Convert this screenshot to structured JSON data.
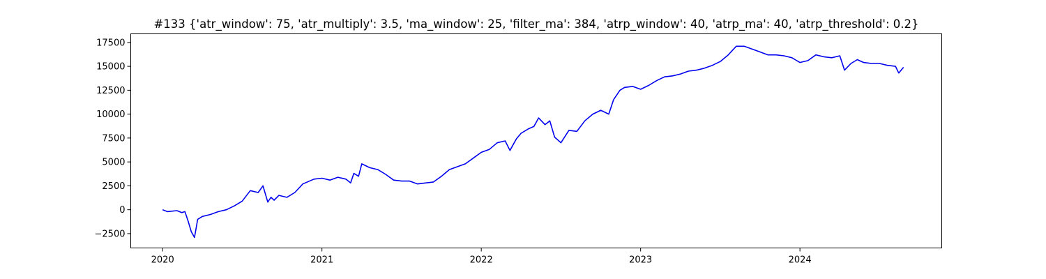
{
  "chart_data": {
    "type": "line",
    "title": "#133 {'atr_window': 75, 'atr_multiply': 3.5, 'ma_window': 25, 'filter_ma': 384, 'atrp_window': 40, 'atrp_ma': 40, 'atrp_threshold': 0.2}",
    "xlabel": "",
    "ylabel": "",
    "grid": false,
    "legend": "none",
    "xlim": [
      2019.8,
      2024.89
    ],
    "ylim": [
      -4000,
      18400
    ],
    "x_ticks": [
      {
        "value": 2020,
        "label": "2020"
      },
      {
        "value": 2021,
        "label": "2021"
      },
      {
        "value": 2022,
        "label": "2022"
      },
      {
        "value": 2023,
        "label": "2023"
      },
      {
        "value": 2024,
        "label": "2024"
      }
    ],
    "y_ticks": [
      {
        "value": -2500,
        "label": "−2500"
      },
      {
        "value": 0,
        "label": "0"
      },
      {
        "value": 2500,
        "label": "2500"
      },
      {
        "value": 5000,
        "label": "5000"
      },
      {
        "value": 7500,
        "label": "7500"
      },
      {
        "value": 10000,
        "label": "10000"
      },
      {
        "value": 12500,
        "label": "12500"
      },
      {
        "value": 15000,
        "label": "15000"
      },
      {
        "value": 17500,
        "label": "17500"
      }
    ],
    "series": [
      {
        "color": "#0000ee",
        "x": [
          2020.0,
          2020.03,
          2020.06,
          2020.09,
          2020.12,
          2020.14,
          2020.16,
          2020.18,
          2020.2,
          2020.22,
          2020.25,
          2020.3,
          2020.35,
          2020.4,
          2020.45,
          2020.5,
          2020.55,
          2020.6,
          2020.63,
          2020.66,
          2020.68,
          2020.7,
          2020.73,
          2020.78,
          2020.83,
          2020.88,
          2020.95,
          2021.0,
          2021.05,
          2021.1,
          2021.15,
          2021.18,
          2021.2,
          2021.23,
          2021.25,
          2021.3,
          2021.35,
          2021.4,
          2021.45,
          2021.5,
          2021.55,
          2021.6,
          2021.65,
          2021.7,
          2021.75,
          2021.8,
          2021.85,
          2021.9,
          2021.95,
          2022.0,
          2022.05,
          2022.1,
          2022.15,
          2022.18,
          2022.22,
          2022.25,
          2022.3,
          2022.33,
          2022.36,
          2022.4,
          2022.43,
          2022.46,
          2022.5,
          2022.55,
          2022.6,
          2022.65,
          2022.7,
          2022.75,
          2022.8,
          2022.83,
          2022.87,
          2022.9,
          2022.95,
          2023.0,
          2023.05,
          2023.1,
          2023.15,
          2023.2,
          2023.25,
          2023.3,
          2023.35,
          2023.4,
          2023.45,
          2023.5,
          2023.55,
          2023.6,
          2023.65,
          2023.7,
          2023.75,
          2023.8,
          2023.85,
          2023.9,
          2023.95,
          2024.0,
          2024.05,
          2024.1,
          2024.15,
          2024.2,
          2024.25,
          2024.28,
          2024.32,
          2024.36,
          2024.4,
          2024.45,
          2024.5,
          2024.55,
          2024.6,
          2024.62,
          2024.65
        ],
        "values": [
          0,
          -200,
          -150,
          -100,
          -300,
          -200,
          -1200,
          -2300,
          -2900,
          -1000,
          -700,
          -500,
          -200,
          0,
          400,
          900,
          2000,
          1800,
          2500,
          800,
          1300,
          1000,
          1500,
          1300,
          1800,
          2700,
          3200,
          3300,
          3100,
          3400,
          3200,
          2800,
          3800,
          3500,
          4800,
          4400,
          4200,
          3700,
          3100,
          3000,
          3000,
          2700,
          2800,
          2900,
          3500,
          4200,
          4500,
          4800,
          5400,
          6000,
          6300,
          7000,
          7200,
          6200,
          7400,
          8000,
          8500,
          8700,
          9600,
          8900,
          9300,
          7600,
          7000,
          8300,
          8200,
          9300,
          10000,
          10400,
          10000,
          11500,
          12500,
          12800,
          12900,
          12600,
          13000,
          13500,
          13900,
          14000,
          14200,
          14500,
          14600,
          14800,
          15100,
          15500,
          16200,
          17100,
          17100,
          16800,
          16500,
          16200,
          16200,
          16100,
          15900,
          15400,
          15600,
          16200,
          16000,
          15900,
          16100,
          14600,
          15300,
          15700,
          15400,
          15300,
          15300,
          15100,
          15000,
          14300,
          14900
        ]
      }
    ]
  }
}
